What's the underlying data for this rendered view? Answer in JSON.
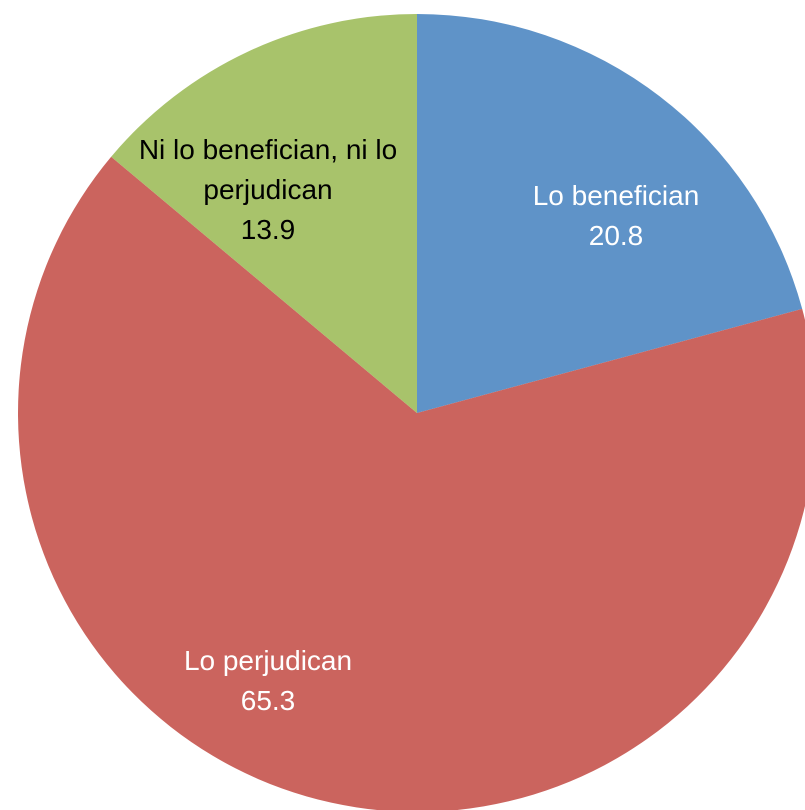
{
  "chart_data": {
    "type": "pie",
    "categories": [
      "Lo benefician",
      "Lo perjudican",
      "Ni lo benefician, ni lo perjudican"
    ],
    "values": [
      20.8,
      65.3,
      13.9
    ],
    "colors": [
      "#5f93c8",
      "#cb645e",
      "#a8c36b"
    ],
    "label_colors": [
      "#ffffff",
      "#ffffff",
      "#000000"
    ]
  }
}
